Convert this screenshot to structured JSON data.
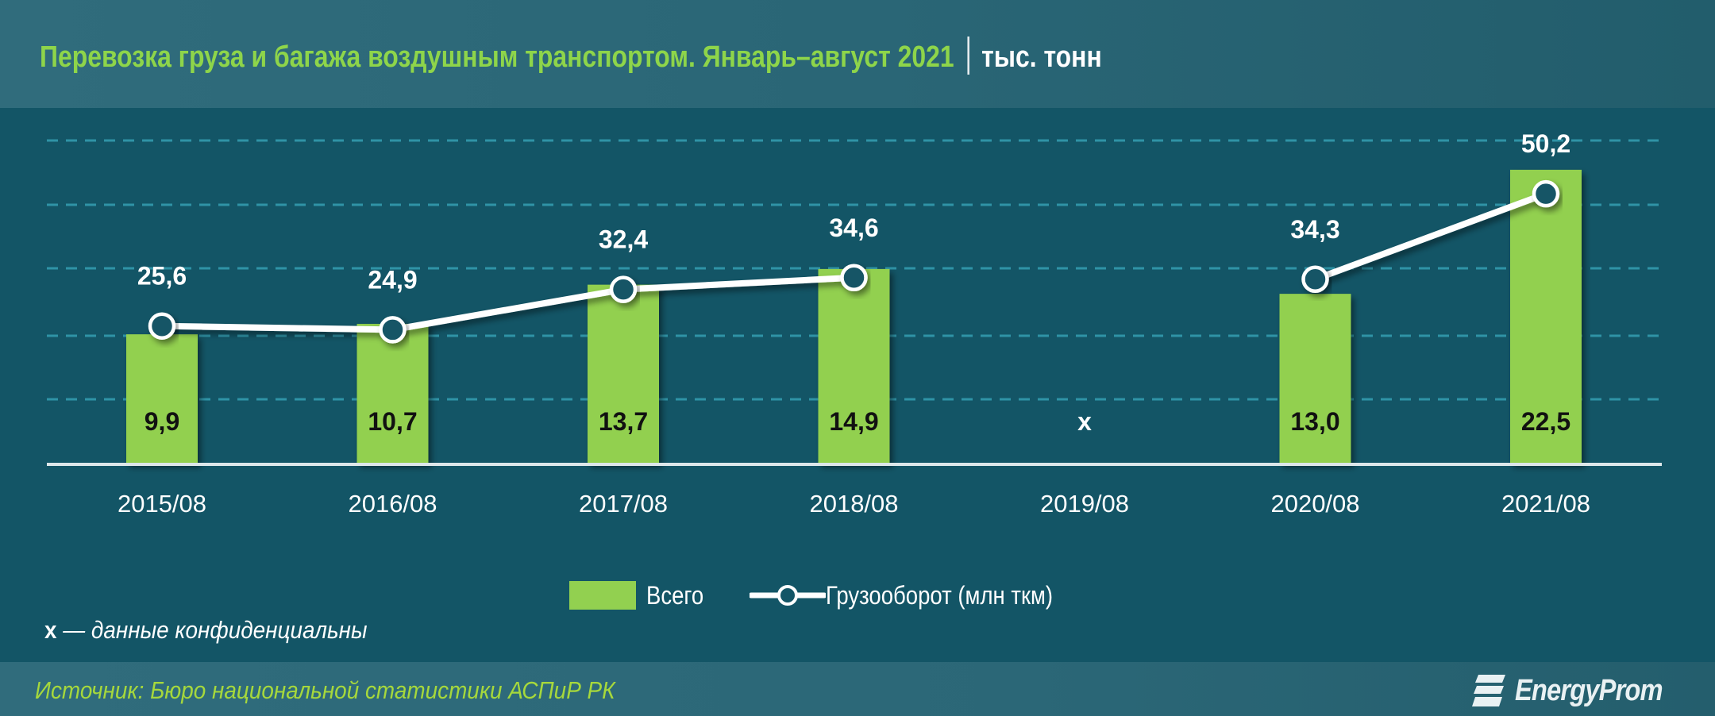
{
  "header": {
    "title": "Перевозка груза и багажа воздушным транспортом. Январь–август 2021",
    "unit": "тыс. тонн"
  },
  "colors": {
    "background": "#135566",
    "header": "#2f6a7a",
    "bar": "#92d050",
    "title_green": "#8ed54a",
    "source_green": "#a6d83c",
    "line": "#ffffff",
    "grid": "#2f93a6"
  },
  "legend": {
    "bar_label": "Всего",
    "line_label": "Грузооборот (млн ткм)"
  },
  "footnote": {
    "symbol": "x",
    "text": " — данные конфиденциальны"
  },
  "footer": {
    "source": "Источник: Бюро национальной статистики АСПиР РК",
    "brand": "EnergyProm"
  },
  "chart_data": {
    "type": "bar",
    "title": "Перевозка груза и багажа воздушным транспортом. Январь–август 2021",
    "subtitle": "тыс. тонн",
    "categories": [
      "2015/08",
      "2016/08",
      "2017/08",
      "2018/08",
      "2019/08",
      "2020/08",
      "2021/08"
    ],
    "series": [
      {
        "name": "Всего",
        "kind": "bar",
        "unit": "тыс. тонн",
        "values": [
          9.9,
          10.7,
          13.7,
          14.9,
          null,
          13.0,
          22.5
        ],
        "labels": [
          "9,9",
          "10,7",
          "13,7",
          "14,9",
          "x",
          "13,0",
          "22,5"
        ]
      },
      {
        "name": "Грузооборот (млн ткм)",
        "kind": "line",
        "unit": "млн ткм",
        "values": [
          25.6,
          24.9,
          32.4,
          34.6,
          null,
          34.3,
          50.2
        ],
        "labels": [
          "25,6",
          "24,9",
          "32,4",
          "34,6",
          "",
          "34,3",
          "50,2"
        ]
      }
    ],
    "xlabel": "",
    "ylabel": "",
    "grid": true,
    "gridlines": 5,
    "legend_position": "bottom",
    "annotations": [
      "x — данные конфиденциальны"
    ]
  }
}
